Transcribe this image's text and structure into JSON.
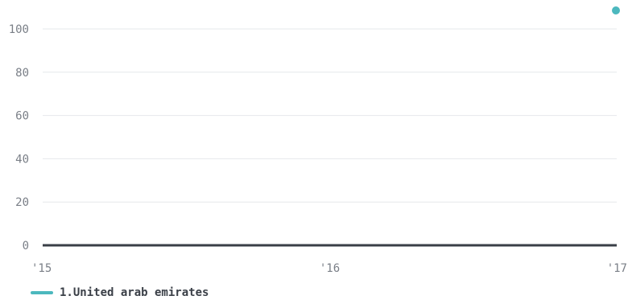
{
  "chart_data": {
    "type": "line",
    "x_ticks": [
      "'15",
      "'16",
      "'17"
    ],
    "y_ticks": [
      "0",
      "20",
      "40",
      "60",
      "80",
      "100"
    ],
    "ylim": [
      0,
      100
    ],
    "grid": true,
    "legend_position": "bottom-left",
    "series": [
      {
        "name": "1.United arab emirates",
        "color": "#4cb8be",
        "points": [
          {
            "x": "'15",
            "y": 0
          },
          {
            "x": "'16",
            "y": 0
          },
          {
            "x": "'17",
            "y": 0
          }
        ]
      }
    ],
    "extra_points": [
      {
        "x": "'17",
        "y": 110,
        "color": "#4cb8be"
      }
    ]
  },
  "colors": {
    "grid": "#e6e8eb",
    "baseline": "#3a3f47"
  },
  "legend": {
    "label": "1.United arab emirates"
  }
}
